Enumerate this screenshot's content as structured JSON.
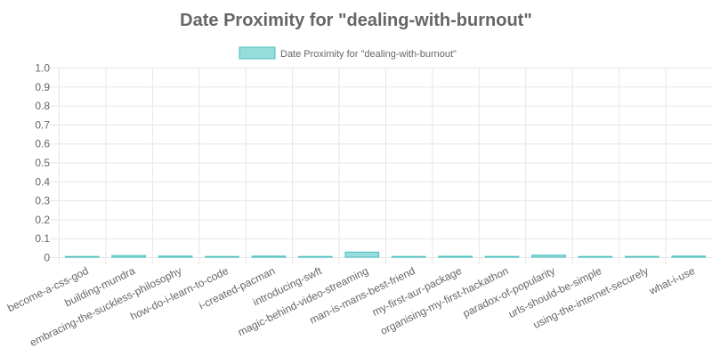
{
  "chart_data": {
    "type": "bar",
    "title": "Date Proximity for \"dealing-with-burnout\"",
    "legend": {
      "position": "top",
      "label": "Date Proximity for \"dealing-with-burnout\""
    },
    "categories": [
      "become-a-css-god",
      "building-mundra",
      "embracing-the-suckless-philosophy",
      "how-do-i-learn-to-code",
      "i-created-pacman",
      "introducing-swft",
      "magic-behind-video-streaming",
      "man-is-mans-best-friend",
      "my-first-aur-package",
      "organising-my-first-hackathon",
      "paradox-of-popularity",
      "urls-should-be-simple",
      "using-the-internet-securely",
      "what-i-use"
    ],
    "series": [
      {
        "name": "Date Proximity for \"dealing-with-burnout\"",
        "values": [
          0.002,
          0.009,
          0.006,
          0.001,
          0.006,
          0.002,
          0.027,
          0.003,
          0.005,
          0.004,
          0.011,
          0.002,
          0.004,
          0.006
        ]
      }
    ],
    "ylim": [
      0,
      1.0
    ],
    "yticks": [
      "0",
      "0.1",
      "0.2",
      "0.3",
      "0.4",
      "0.5",
      "0.6",
      "0.7",
      "0.8",
      "0.9",
      "1.0"
    ],
    "grid": true,
    "colors": {
      "bar_fill": "#96dcdc",
      "bar_stroke": "#4bc0c0",
      "text": "#666666",
      "grid": "#e6e6e6"
    }
  }
}
